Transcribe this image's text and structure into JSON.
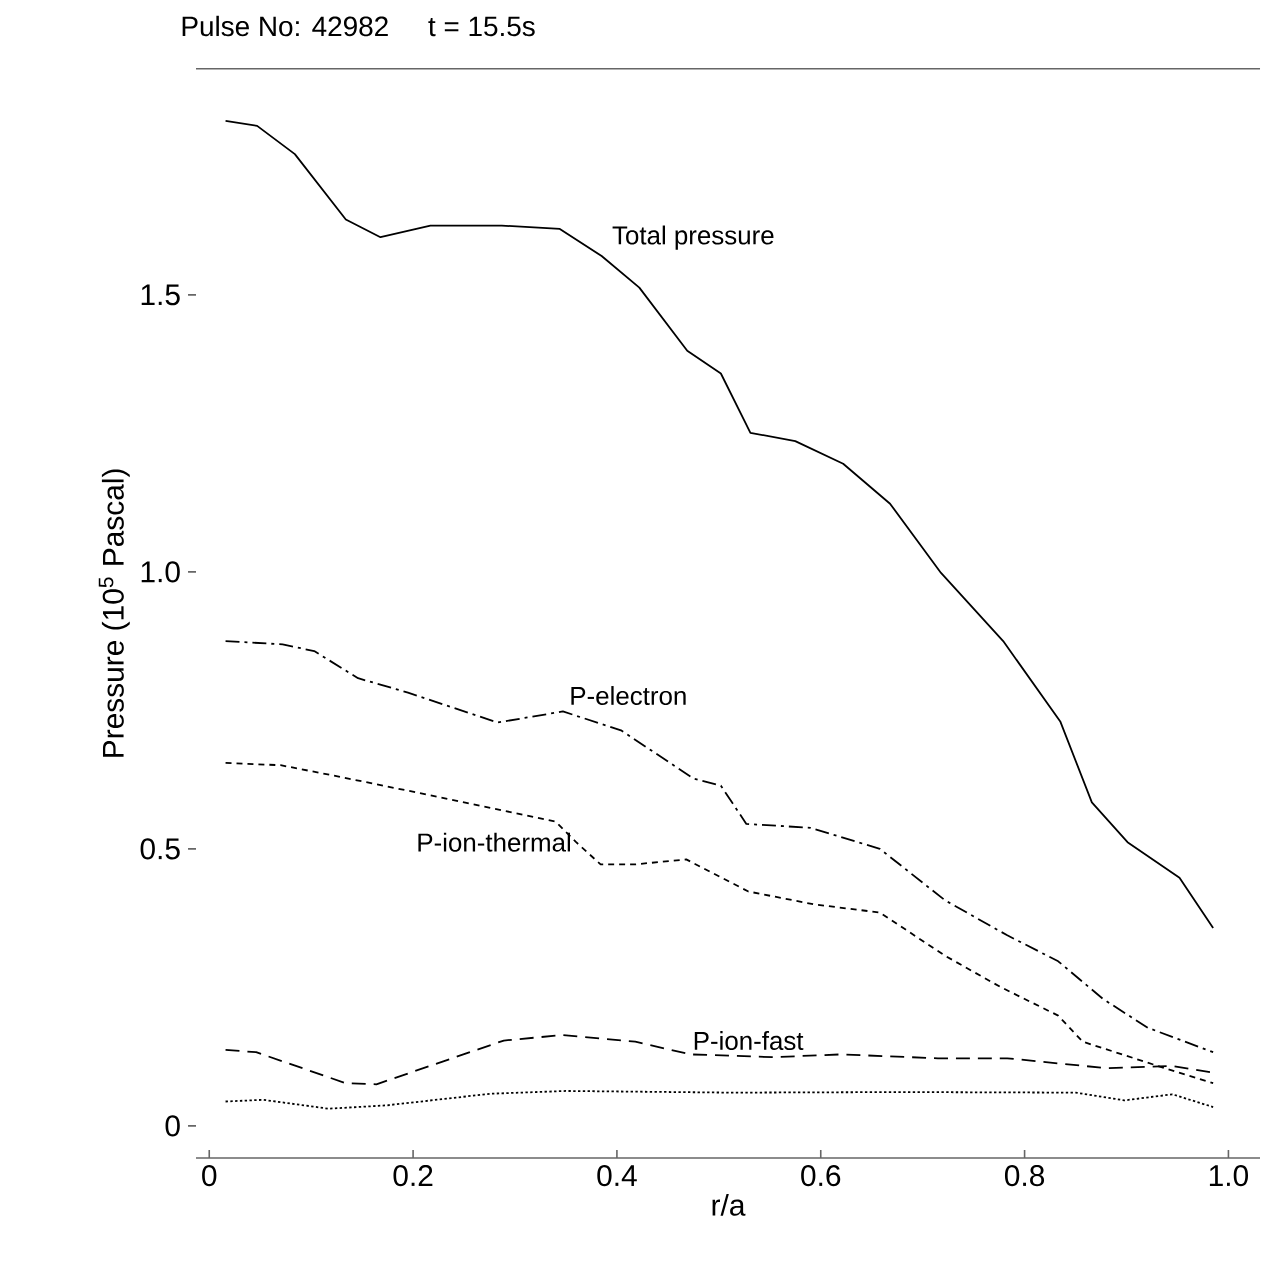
{
  "chart_data": {
    "type": "line",
    "title": "Pulse No: 42982     t = 15.5s",
    "xlabel": "r/a",
    "ylabel": "Pressure (10$^{5}$ Pascal)",
    "xlim": [
      -0.013,
      1.031
    ],
    "ylim": [
      -0.058,
      1.908
    ],
    "xticks": [
      0,
      0.2,
      0.4,
      0.6,
      0.8,
      {
        "value": 1,
        "label": "1.0"
      }
    ],
    "yticks": [
      0,
      0.5,
      {
        "value": 1,
        "label": "1.0"
      },
      1.5
    ],
    "grid": false,
    "series": [
      {
        "name": "Total pressure",
        "color": "#000000",
        "line_style": "solid",
        "x": [
          0.016,
          0.047,
          0.084,
          0.134,
          0.168,
          0.217,
          0.287,
          0.344,
          0.385,
          0.422,
          0.469,
          0.502,
          0.531,
          0.575,
          0.622,
          0.668,
          0.718,
          0.779,
          0.835,
          0.866,
          0.901,
          0.952,
          0.985
        ],
        "values": [
          1.814,
          1.805,
          1.754,
          1.636,
          1.604,
          1.625,
          1.625,
          1.619,
          1.57,
          1.513,
          1.399,
          1.358,
          1.251,
          1.236,
          1.195,
          1.123,
          0.998,
          0.875,
          0.73,
          0.584,
          0.512,
          0.448,
          0.357
        ]
      },
      {
        "name": "P-electron",
        "color": "#000000",
        "line_style": "dashdot",
        "x": [
          0.016,
          0.072,
          0.103,
          0.146,
          0.195,
          0.283,
          0.347,
          0.404,
          0.475,
          0.502,
          0.527,
          0.59,
          0.658,
          0.722,
          0.783,
          0.833,
          0.877,
          0.921,
          0.985
        ],
        "values": [
          0.875,
          0.869,
          0.857,
          0.808,
          0.782,
          0.728,
          0.748,
          0.714,
          0.627,
          0.614,
          0.545,
          0.538,
          0.5,
          0.407,
          0.344,
          0.297,
          0.229,
          0.177,
          0.133
        ]
      },
      {
        "name": "P-ion-thermal",
        "color": "#000000",
        "line_style": "dashed",
        "x": [
          0.016,
          0.07,
          0.12,
          0.195,
          0.276,
          0.34,
          0.36,
          0.384,
          0.418,
          0.468,
          0.529,
          0.593,
          0.658,
          0.722,
          0.776,
          0.833,
          0.857,
          0.931,
          0.985
        ],
        "values": [
          0.655,
          0.651,
          0.633,
          0.605,
          0.574,
          0.549,
          0.512,
          0.472,
          0.472,
          0.481,
          0.423,
          0.4,
          0.385,
          0.307,
          0.251,
          0.199,
          0.152,
          0.108,
          0.077
        ]
      },
      {
        "name": "P-ion-fast",
        "color": "#000000",
        "line_style": "loosely dashed",
        "x": [
          0.016,
          0.046,
          0.134,
          0.164,
          0.289,
          0.347,
          0.418,
          0.472,
          0.553,
          0.62,
          0.715,
          0.783,
          0.881,
          0.945,
          0.985
        ],
        "values": [
          0.137,
          0.133,
          0.077,
          0.075,
          0.154,
          0.164,
          0.152,
          0.129,
          0.124,
          0.129,
          0.122,
          0.122,
          0.104,
          0.108,
          0.096
        ]
      },
      {
        "color": "#000000",
        "line_style": "dotted",
        "x": [
          0.016,
          0.053,
          0.117,
          0.174,
          0.276,
          0.35,
          0.512,
          0.681,
          0.85,
          0.898,
          0.945,
          0.985
        ],
        "values": [
          0.044,
          0.047,
          0.031,
          0.037,
          0.058,
          0.063,
          0.06,
          0.061,
          0.06,
          0.046,
          0.057,
          0.034
        ]
      }
    ]
  }
}
